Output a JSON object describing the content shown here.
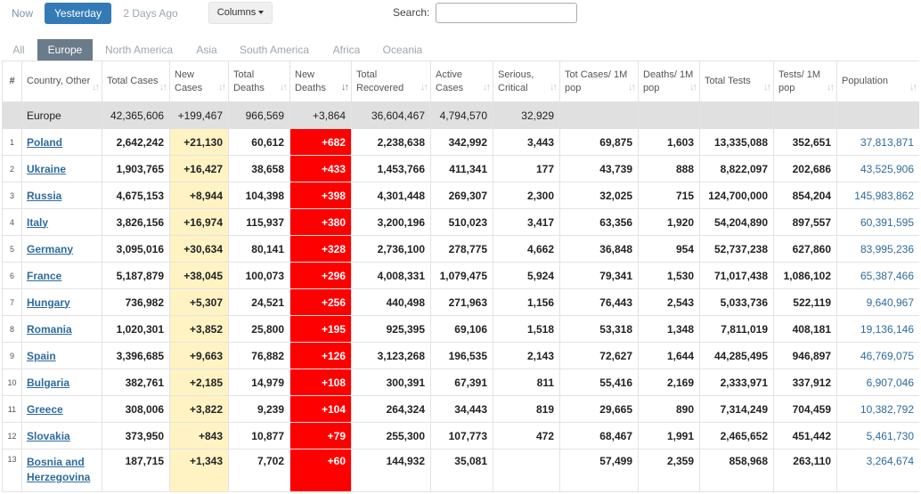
{
  "toolbar": {
    "now": "Now",
    "yesterday": "Yesterday",
    "two_days_ago": "2 Days Ago",
    "columns": "Columns",
    "search_label": "Search:",
    "search_value": ""
  },
  "tabs": [
    "All",
    "Europe",
    "North America",
    "Asia",
    "South America",
    "Africa",
    "Oceania"
  ],
  "active_tab": "Europe",
  "colors": {
    "active_button": "#337ab7",
    "active_tab": "#6a7b8a",
    "new_cases_bg": "#fff3c4",
    "new_deaths_bg": "#ff0000",
    "link": "#2e6b9e"
  },
  "headers": [
    "#",
    "Country, Other",
    "Total Cases",
    "New Cases",
    "Total Deaths",
    "New Deaths",
    "Total Recovered",
    "Active Cases",
    "Serious, Critical",
    "Tot Cases/ 1M pop",
    "Deaths/ 1M pop",
    "Total Tests",
    "Tests/ 1M pop",
    "Population"
  ],
  "total_row": [
    "",
    "Europe",
    "42,365,606",
    "+199,467",
    "966,569",
    "+3,864",
    "36,604,467",
    "4,794,570",
    "32,929",
    "",
    "",
    "",
    "",
    ""
  ],
  "rows": [
    [
      "1",
      "Poland",
      "2,642,242",
      "+21,130",
      "60,612",
      "+682",
      "2,238,638",
      "342,992",
      "3,443",
      "69,875",
      "1,603",
      "13,335,088",
      "352,651",
      "37,813,871"
    ],
    [
      "2",
      "Ukraine",
      "1,903,765",
      "+16,427",
      "38,658",
      "+433",
      "1,453,766",
      "411,341",
      "177",
      "43,739",
      "888",
      "8,822,097",
      "202,686",
      "43,525,906"
    ],
    [
      "3",
      "Russia",
      "4,675,153",
      "+8,944",
      "104,398",
      "+398",
      "4,301,448",
      "269,307",
      "2,300",
      "32,025",
      "715",
      "124,700,000",
      "854,204",
      "145,983,862"
    ],
    [
      "4",
      "Italy",
      "3,826,156",
      "+16,974",
      "115,937",
      "+380",
      "3,200,196",
      "510,023",
      "3,417",
      "63,356",
      "1,920",
      "54,204,890",
      "897,557",
      "60,391,595"
    ],
    [
      "5",
      "Germany",
      "3,095,016",
      "+30,634",
      "80,141",
      "+328",
      "2,736,100",
      "278,775",
      "4,662",
      "36,848",
      "954",
      "52,737,238",
      "627,860",
      "83,995,236"
    ],
    [
      "6",
      "France",
      "5,187,879",
      "+38,045",
      "100,073",
      "+296",
      "4,008,331",
      "1,079,475",
      "5,924",
      "79,341",
      "1,530",
      "71,017,438",
      "1,086,102",
      "65,387,466"
    ],
    [
      "7",
      "Hungary",
      "736,982",
      "+5,307",
      "24,521",
      "+256",
      "440,498",
      "271,963",
      "1,156",
      "76,443",
      "2,543",
      "5,033,736",
      "522,119",
      "9,640,967"
    ],
    [
      "8",
      "Romania",
      "1,020,301",
      "+3,852",
      "25,800",
      "+195",
      "925,395",
      "69,106",
      "1,518",
      "53,318",
      "1,348",
      "7,811,019",
      "408,181",
      "19,136,146"
    ],
    [
      "9",
      "Spain",
      "3,396,685",
      "+9,663",
      "76,882",
      "+126",
      "3,123,268",
      "196,535",
      "2,143",
      "72,627",
      "1,644",
      "44,285,495",
      "946,897",
      "46,769,075"
    ],
    [
      "10",
      "Bulgaria",
      "382,761",
      "+2,185",
      "14,979",
      "+108",
      "300,391",
      "67,391",
      "811",
      "55,416",
      "2,169",
      "2,333,971",
      "337,912",
      "6,907,046"
    ],
    [
      "11",
      "Greece",
      "308,006",
      "+3,822",
      "9,239",
      "+104",
      "264,324",
      "34,443",
      "819",
      "29,665",
      "890",
      "7,314,249",
      "704,459",
      "10,382,792"
    ],
    [
      "12",
      "Slovakia",
      "373,950",
      "+843",
      "10,877",
      "+79",
      "255,300",
      "107,773",
      "472",
      "68,467",
      "1,991",
      "2,465,652",
      "451,442",
      "5,461,730"
    ],
    [
      "13",
      "Bosnia and Herzegovina",
      "187,715",
      "+1,343",
      "7,702",
      "+60",
      "144,932",
      "35,081",
      "",
      "57,499",
      "2,359",
      "858,968",
      "263,110",
      "3,264,674"
    ]
  ]
}
